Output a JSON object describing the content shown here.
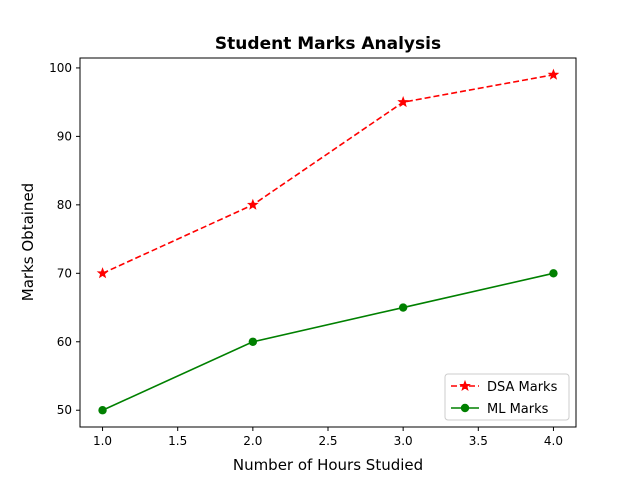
{
  "chart_data": {
    "type": "line",
    "title": "Student Marks Analysis",
    "xlabel": "Number of Hours Studied",
    "ylabel": "Marks Obtained",
    "x": [
      1.0,
      2.0,
      3.0,
      4.0
    ],
    "xlim": [
      0.85,
      4.15
    ],
    "ylim": [
      47.55,
      101.45
    ],
    "xticks": [
      1.0,
      1.5,
      2.0,
      2.5,
      3.0,
      3.5,
      4.0
    ],
    "xtick_labels": [
      "1.0",
      "1.5",
      "2.0",
      "2.5",
      "3.0",
      "3.5",
      "4.0"
    ],
    "yticks": [
      50,
      60,
      70,
      80,
      90,
      100
    ],
    "ytick_labels": [
      "50",
      "60",
      "70",
      "80",
      "90",
      "100"
    ],
    "grid": false,
    "legend_position": "bottom-right",
    "series": [
      {
        "name": "DSA Marks",
        "values": [
          70,
          80,
          95,
          99
        ],
        "color": "#ff0000",
        "linestyle": "dashed",
        "marker": "star"
      },
      {
        "name": "ML Marks",
        "values": [
          50,
          60,
          65,
          70
        ],
        "color": "#008000",
        "linestyle": "solid",
        "marker": "circle"
      }
    ]
  }
}
